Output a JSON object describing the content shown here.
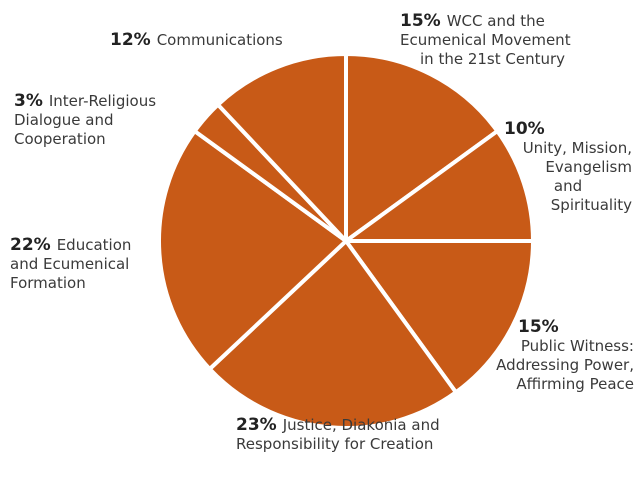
{
  "colors": {
    "slice_fill": "#c85a17",
    "slice_border": "#ffffff",
    "text": "#3a3a3a",
    "percent_text": "#222222"
  },
  "chart_data": {
    "type": "pie",
    "title": "",
    "series": [
      {
        "values": [
          15,
          10,
          15,
          23,
          22,
          3,
          12
        ],
        "categories": [
          "WCC and the Ecumenical Movement in the 21st Century",
          "Unity, Mission, Evangelism and Spirituality",
          "Public Witness: Addressing Power, Affirming Peace",
          "Justice, Diakonia and Responsibility for Creation",
          "Education and Ecumenical Formation",
          "Inter-Religious Dialogue and Cooperation",
          "Communications"
        ]
      }
    ],
    "slices": [
      {
        "percent": "15%",
        "lines": [
          "WCC and the",
          "Ecumenical Movement",
          "in the 21st Century"
        ]
      },
      {
        "percent": "10%",
        "lines": [
          "Unity, Mission,",
          "Evangelism",
          "and",
          "Spirituality"
        ]
      },
      {
        "percent": "15%",
        "lines": [
          "Public Witness:",
          "Addressing Power,",
          "Affirming Peace"
        ]
      },
      {
        "percent": "23%",
        "lines": [
          "Justice, Diakonia and",
          "Responsibility for Creation"
        ]
      },
      {
        "percent": "22%",
        "lines": [
          "Education",
          "and Ecumenical",
          "Formation"
        ]
      },
      {
        "percent": "3%",
        "lines": [
          "Inter-Religious",
          "Dialogue and",
          "Cooperation"
        ]
      },
      {
        "percent": "12%",
        "lines": [
          "Communications"
        ]
      }
    ],
    "legend": "none",
    "start_angle_note": "slices proceed clockwise from top"
  }
}
